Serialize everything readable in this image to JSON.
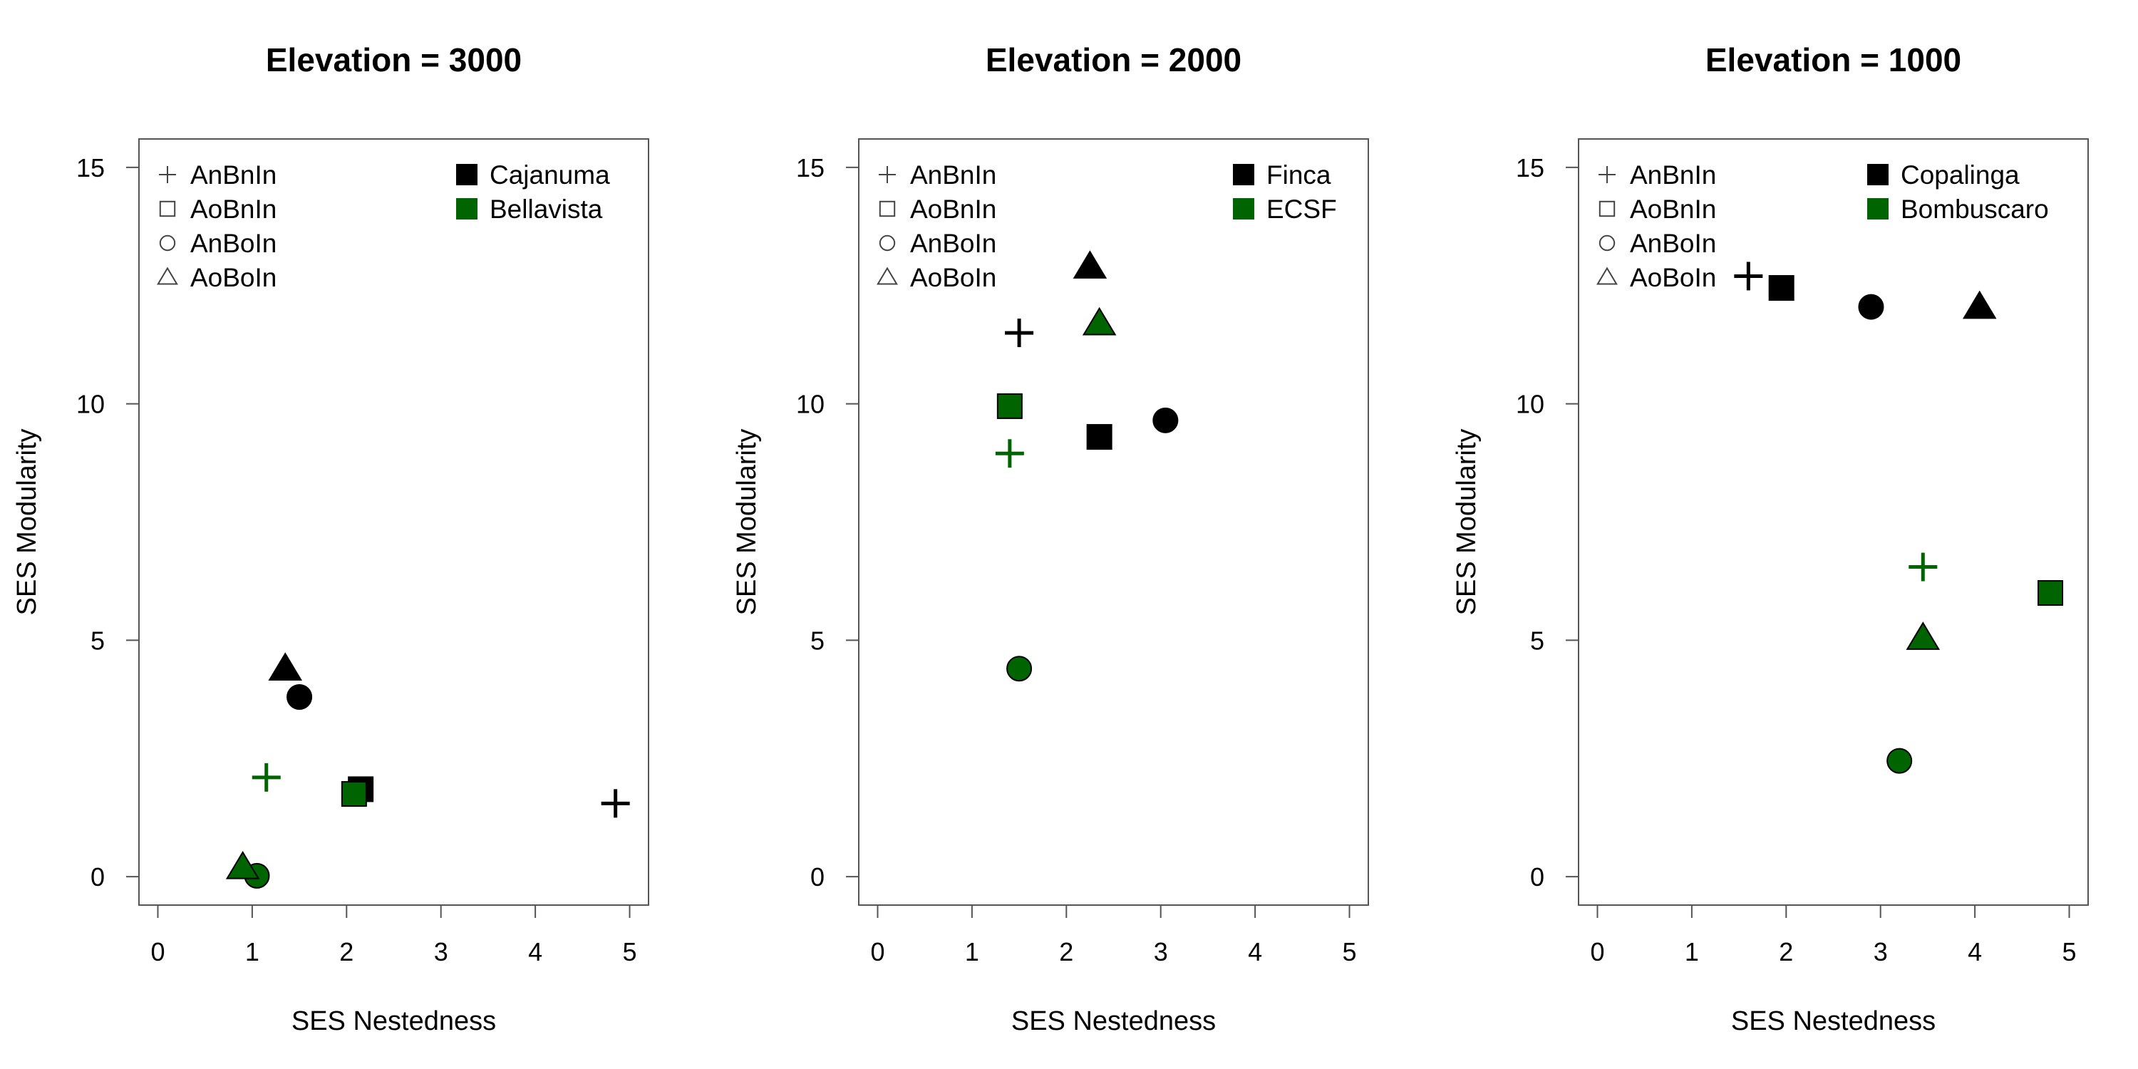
{
  "chart_data": [
    {
      "type": "scatter",
      "title": "Elevation =  3000",
      "xlabel": "SES Nestedness",
      "ylabel": "SES Modularity",
      "xlim": [
        -0.2,
        5.2
      ],
      "ylim": [
        -0.6,
        15.6
      ],
      "xticks": [
        "0",
        "1",
        "2",
        "3",
        "4",
        "5"
      ],
      "yticks": [
        "0",
        "5",
        "10",
        "15"
      ],
      "shape_legend": [
        "AnBnIn",
        "AoBnIn",
        "AnBoIn",
        "AoBoIn"
      ],
      "site_legend": [
        {
          "name": "Cajanuma",
          "color": "#000000"
        },
        {
          "name": "Bellavista",
          "color": "#006400"
        }
      ],
      "points": [
        {
          "site": "Cajanuma",
          "shape": "AnBnIn",
          "x": 4.85,
          "y": 1.55
        },
        {
          "site": "Cajanuma",
          "shape": "AoBnIn",
          "x": 2.15,
          "y": 1.85
        },
        {
          "site": "Cajanuma",
          "shape": "AnBoIn",
          "x": 1.5,
          "y": 3.8
        },
        {
          "site": "Cajanuma",
          "shape": "AoBoIn",
          "x": 1.35,
          "y": 4.4
        },
        {
          "site": "Bellavista",
          "shape": "AnBnIn",
          "x": 1.15,
          "y": 2.1
        },
        {
          "site": "Bellavista",
          "shape": "AoBnIn",
          "x": 2.08,
          "y": 1.75
        },
        {
          "site": "Bellavista",
          "shape": "AnBoIn",
          "x": 1.05,
          "y": 0.02
        },
        {
          "site": "Bellavista",
          "shape": "AoBoIn",
          "x": 0.9,
          "y": 0.2
        }
      ]
    },
    {
      "type": "scatter",
      "title": "Elevation =  2000",
      "xlabel": "SES Nestedness",
      "ylabel": "SES Modularity",
      "xlim": [
        -0.2,
        5.2
      ],
      "ylim": [
        -0.6,
        15.6
      ],
      "xticks": [
        "0",
        "1",
        "2",
        "3",
        "4",
        "5"
      ],
      "yticks": [
        "0",
        "5",
        "10",
        "15"
      ],
      "shape_legend": [
        "AnBnIn",
        "AoBnIn",
        "AnBoIn",
        "AoBoIn"
      ],
      "site_legend": [
        {
          "name": "Finca",
          "color": "#000000"
        },
        {
          "name": "ECSF",
          "color": "#006400"
        }
      ],
      "points": [
        {
          "site": "Finca",
          "shape": "AnBnIn",
          "x": 1.5,
          "y": 11.5
        },
        {
          "site": "Finca",
          "shape": "AoBnIn",
          "x": 2.35,
          "y": 9.3
        },
        {
          "site": "Finca",
          "shape": "AnBoIn",
          "x": 3.05,
          "y": 9.65
        },
        {
          "site": "Finca",
          "shape": "AoBoIn",
          "x": 2.25,
          "y": 12.9
        },
        {
          "site": "ECSF",
          "shape": "AnBnIn",
          "x": 1.4,
          "y": 8.95
        },
        {
          "site": "ECSF",
          "shape": "AoBnIn",
          "x": 1.4,
          "y": 9.95
        },
        {
          "site": "ECSF",
          "shape": "AnBoIn",
          "x": 1.5,
          "y": 4.4
        },
        {
          "site": "ECSF",
          "shape": "AoBoIn",
          "x": 2.35,
          "y": 11.7
        }
      ]
    },
    {
      "type": "scatter",
      "title": "Elevation =  1000",
      "xlabel": "SES Nestedness",
      "ylabel": "SES Modularity",
      "xlim": [
        -0.2,
        5.2
      ],
      "ylim": [
        -0.6,
        15.6
      ],
      "xticks": [
        "0",
        "1",
        "2",
        "3",
        "4",
        "5"
      ],
      "yticks": [
        "0",
        "5",
        "10",
        "15"
      ],
      "shape_legend": [
        "AnBnIn",
        "AoBnIn",
        "AnBoIn",
        "AoBoIn"
      ],
      "site_legend": [
        {
          "name": "Copalinga",
          "color": "#000000"
        },
        {
          "name": "Bombuscaro",
          "color": "#006400"
        }
      ],
      "points": [
        {
          "site": "Copalinga",
          "shape": "AnBnIn",
          "x": 1.6,
          "y": 12.7
        },
        {
          "site": "Copalinga",
          "shape": "AoBnIn",
          "x": 1.95,
          "y": 12.45
        },
        {
          "site": "Copalinga",
          "shape": "AnBoIn",
          "x": 2.9,
          "y": 12.05
        },
        {
          "site": "Copalinga",
          "shape": "AoBoIn",
          "x": 4.05,
          "y": 12.05
        },
        {
          "site": "Bombuscaro",
          "shape": "AnBnIn",
          "x": 3.45,
          "y": 6.55
        },
        {
          "site": "Bombuscaro",
          "shape": "AoBnIn",
          "x": 4.8,
          "y": 6.0
        },
        {
          "site": "Bombuscaro",
          "shape": "AnBoIn",
          "x": 3.2,
          "y": 2.45
        },
        {
          "site": "Bombuscaro",
          "shape": "AoBoIn",
          "x": 3.45,
          "y": 5.05
        }
      ]
    }
  ]
}
